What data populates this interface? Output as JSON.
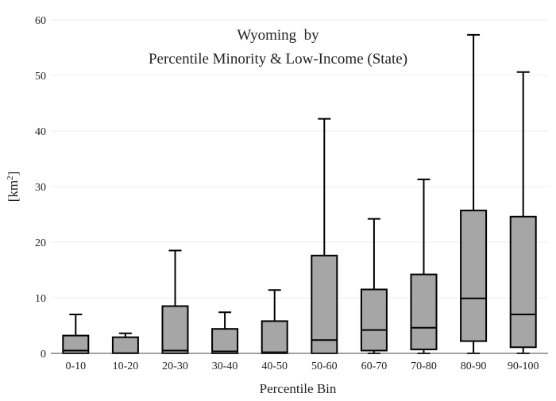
{
  "chart_data": {
    "type": "box",
    "title_line1": "Wyoming  by",
    "title_line2": "Percentile Minority & Low-Income (State)",
    "xlabel": "Percentile Bin",
    "ylabel_base": "[km",
    "ylabel_sup": "2",
    "ylabel_close": "]",
    "ylim": [
      0,
      60
    ],
    "yticks": [
      0,
      10,
      20,
      30,
      40,
      50,
      60
    ],
    "grid": true,
    "colors": {
      "box_fill": "#a6a6a6",
      "stroke": "#000000",
      "grid": "#eeeeee",
      "axis": "#444444"
    },
    "categories": [
      "0-10",
      "10-20",
      "20-30",
      "30-40",
      "40-50",
      "50-60",
      "60-70",
      "70-80",
      "80-90",
      "90-100"
    ],
    "boxes": [
      {
        "min": 0,
        "q1": 0,
        "median": 0.5,
        "q3": 3.2,
        "max": 7.0
      },
      {
        "min": 0,
        "q1": 0,
        "median": 0.05,
        "q3": 2.9,
        "max": 3.6
      },
      {
        "min": 0,
        "q1": 0,
        "median": 0.5,
        "q3": 8.5,
        "max": 18.5
      },
      {
        "min": 0,
        "q1": 0,
        "median": 0.35,
        "q3": 4.4,
        "max": 7.4
      },
      {
        "min": 0,
        "q1": 0,
        "median": 0.2,
        "q3": 5.8,
        "max": 11.4
      },
      {
        "min": 0,
        "q1": 0,
        "median": 2.4,
        "q3": 17.6,
        "max": 42.2
      },
      {
        "min": 0,
        "q1": 0.5,
        "median": 4.2,
        "q3": 11.5,
        "max": 24.2
      },
      {
        "min": 0,
        "q1": 0.7,
        "median": 4.6,
        "q3": 14.2,
        "max": 31.3
      },
      {
        "min": 0,
        "q1": 2.2,
        "median": 9.9,
        "q3": 25.7,
        "max": 57.3
      },
      {
        "min": 0,
        "q1": 1.1,
        "median": 7.0,
        "q3": 24.6,
        "max": 50.6
      }
    ]
  }
}
